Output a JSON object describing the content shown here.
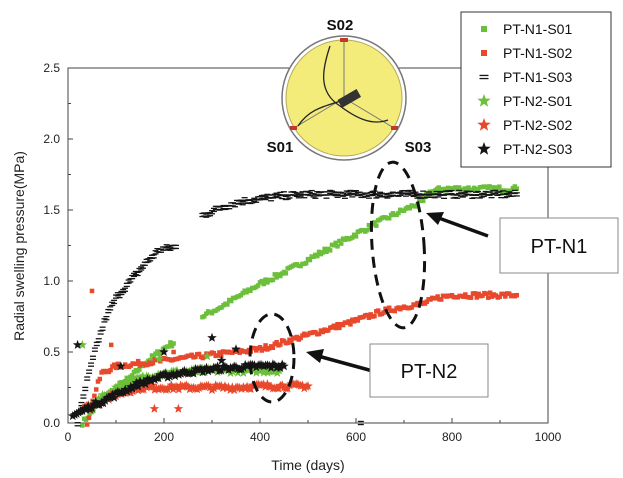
{
  "chart_data": {
    "type": "scatter",
    "title": "",
    "xlabel": "Time (days)",
    "ylabel": "Radial swelling pressure(MPa)",
    "xlim": [
      0,
      1000
    ],
    "ylim": [
      0,
      2.5
    ],
    "xticks": [
      0,
      200,
      400,
      600,
      800,
      1000
    ],
    "xtick_labels": [
      "0",
      "200",
      "400",
      "600",
      "800",
      "1000"
    ],
    "yticks": [
      0.0,
      0.5,
      1.0,
      1.5,
      2.0,
      2.5
    ],
    "ytick_labels": [
      "0.0",
      "0.5",
      "1.0",
      "1.5",
      "2.0",
      "2.5"
    ],
    "grid": false,
    "legend_position": "top-right",
    "series": [
      {
        "name": "PT-N1-S01",
        "color": "#6cbf3a",
        "marker": "square",
        "segments": [
          [
            [
              30,
              0.0
            ],
            [
              60,
              0.12
            ],
            [
              100,
              0.25
            ],
            [
              130,
              0.32
            ],
            [
              160,
              0.42
            ],
            [
              190,
              0.5
            ],
            [
              210,
              0.55
            ],
            [
              220,
              0.56
            ]
          ],
          [
            [
              280,
              0.75
            ],
            [
              320,
              0.82
            ],
            [
              360,
              0.9
            ],
            [
              400,
              0.98
            ],
            [
              450,
              1.06
            ],
            [
              500,
              1.15
            ],
            [
              550,
              1.24
            ],
            [
              600,
              1.33
            ],
            [
              650,
              1.42
            ],
            [
              700,
              1.5
            ],
            [
              740,
              1.56
            ],
            [
              750,
              1.62
            ],
            [
              780,
              1.65
            ],
            [
              850,
              1.65
            ],
            [
              935,
              1.65
            ]
          ]
        ]
      },
      {
        "name": "PT-N1-S02",
        "color": "#e8482c",
        "marker": "square",
        "segments": [
          [
            [
              40,
              0.0
            ],
            [
              55,
              0.2
            ],
            [
              70,
              0.35
            ],
            [
              100,
              0.4
            ],
            [
              150,
              0.42
            ],
            [
              200,
              0.44
            ],
            [
              250,
              0.46
            ],
            [
              300,
              0.48
            ],
            [
              350,
              0.5
            ],
            [
              400,
              0.52
            ],
            [
              450,
              0.57
            ],
            [
              500,
              0.62
            ],
            [
              550,
              0.67
            ],
            [
              600,
              0.72
            ],
            [
              650,
              0.78
            ],
            [
              700,
              0.82
            ],
            [
              740,
              0.84
            ],
            [
              770,
              0.88
            ],
            [
              800,
              0.9
            ],
            [
              935,
              0.9
            ]
          ]
        ],
        "outliers": [
          [
            50,
            0.93
          ],
          [
            90,
            0.55
          ],
          [
            220,
            0.5
          ]
        ]
      },
      {
        "name": "PT-N1-S03",
        "color": "#151515",
        "marker": "dash",
        "segments": [
          [
            [
              20,
              0.0
            ],
            [
              40,
              0.3
            ],
            [
              60,
              0.55
            ],
            [
              80,
              0.75
            ],
            [
              100,
              0.88
            ],
            [
              130,
              1.0
            ],
            [
              160,
              1.12
            ],
            [
              190,
              1.22
            ],
            [
              225,
              1.24
            ]
          ],
          [
            [
              280,
              1.46
            ],
            [
              320,
              1.52
            ],
            [
              360,
              1.56
            ],
            [
              400,
              1.58
            ],
            [
              450,
              1.6
            ],
            [
              500,
              1.61
            ],
            [
              550,
              1.61
            ],
            [
              600,
              1.61
            ],
            [
              650,
              1.61
            ],
            [
              700,
              1.61
            ],
            [
              760,
              1.61
            ],
            [
              850,
              1.61
            ],
            [
              935,
              1.61
            ]
          ]
        ],
        "outliers": [
          [
            610,
            0.0
          ]
        ]
      },
      {
        "name": "PT-N2-S01",
        "color": "#6cbf3a",
        "marker": "star",
        "segments": [
          [
            [
              40,
              0.1
            ],
            [
              80,
              0.2
            ],
            [
              120,
              0.28
            ],
            [
              160,
              0.32
            ],
            [
              200,
              0.35
            ],
            [
              250,
              0.36
            ],
            [
              300,
              0.37
            ],
            [
              350,
              0.37
            ],
            [
              400,
              0.37
            ],
            [
              440,
              0.37
            ]
          ]
        ],
        "outliers": [
          [
            30,
            0.55
          ],
          [
            190,
            0.45
          ],
          [
            290,
            0.47
          ]
        ]
      },
      {
        "name": "PT-N2-S02",
        "color": "#e8482c",
        "marker": "star",
        "segments": [
          [
            [
              30,
              0.1
            ],
            [
              70,
              0.15
            ],
            [
              100,
              0.2
            ],
            [
              150,
              0.25
            ],
            [
              200,
              0.25
            ],
            [
              250,
              0.25
            ],
            [
              300,
              0.25
            ],
            [
              350,
              0.25
            ],
            [
              400,
              0.26
            ],
            [
              450,
              0.26
            ],
            [
              500,
              0.26
            ]
          ]
        ],
        "outliers": [
          [
            230,
            0.1
          ],
          [
            180,
            0.1
          ]
        ]
      },
      {
        "name": "PT-N2-S03",
        "color": "#151515",
        "marker": "star",
        "segments": [
          [
            [
              10,
              0.05
            ],
            [
              50,
              0.12
            ],
            [
              100,
              0.2
            ],
            [
              150,
              0.28
            ],
            [
              200,
              0.33
            ],
            [
              250,
              0.36
            ],
            [
              300,
              0.38
            ],
            [
              350,
              0.39
            ],
            [
              400,
              0.4
            ],
            [
              450,
              0.4
            ]
          ]
        ],
        "outliers": [
          [
            20,
            0.55
          ],
          [
            110,
            0.4
          ],
          [
            200,
            0.5
          ],
          [
            300,
            0.6
          ],
          [
            350,
            0.52
          ],
          [
            320,
            0.44
          ]
        ]
      }
    ],
    "annotations": {
      "inset": {
        "labels": [
          "S02",
          "S01",
          "S03"
        ]
      },
      "callouts": [
        "PT-N1",
        "PT-N2"
      ]
    }
  },
  "colors": {
    "s01_green": "#6cbf3a",
    "s02_red": "#e8482c",
    "s03_black": "#151515",
    "inset_fill": "#f3ec7a"
  }
}
